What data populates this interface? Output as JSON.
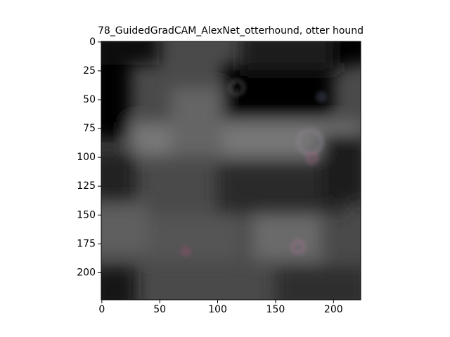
{
  "chart_data": {
    "type": "image",
    "title": "78_GuidedGradCAM_AlexNet_otterhound, otter hound",
    "xlim": [
      -0.5,
      223.5
    ],
    "ylim": [
      223.5,
      -0.5
    ],
    "xticks": [
      0,
      50,
      100,
      150,
      200
    ],
    "yticks": [
      0,
      25,
      50,
      75,
      100,
      125,
      150,
      175,
      200
    ]
  }
}
